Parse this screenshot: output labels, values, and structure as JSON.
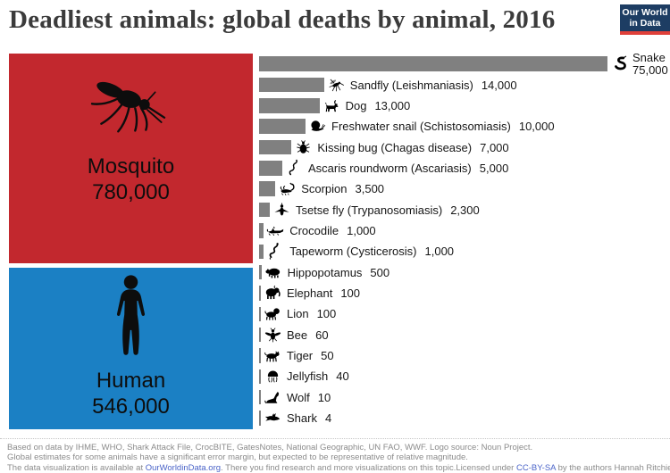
{
  "title": "Deadliest animals: global deaths by animal, 2016",
  "logo": {
    "line1": "Our World",
    "line2": "in Data"
  },
  "colors": {
    "bar": "#808080",
    "mosquito_box": "#c2282e",
    "human_box": "#1b80c4",
    "logo_bg": "#1d3d63",
    "logo_stripe": "#e0403a",
    "link": "#4a63c8",
    "title_text": "#3b3b3b",
    "footer_text": "#8b8b8b"
  },
  "chart_data": {
    "type": "bar",
    "title": "Deadliest animals: global deaths by animal, 2016",
    "unit": "global deaths",
    "orientation": "horizontal",
    "bar_scale_max": 75000,
    "legend_position": "none",
    "grid": false,
    "highlight_boxes": [
      {
        "label": "Mosquito",
        "value": 780000,
        "display": "780,000",
        "color": "#c2282e",
        "icon": "mosquito-icon"
      },
      {
        "label": "Human",
        "value": 546000,
        "display": "546,000",
        "color": "#1b80c4",
        "icon": "human-icon"
      }
    ],
    "rows": [
      {
        "label": "Snake",
        "value": 75000,
        "display": "75,000",
        "icon": "snake-icon",
        "label_layout": "stacked"
      },
      {
        "label": "Sandfly (Leishmaniasis)",
        "value": 14000,
        "display": "14,000",
        "icon": "sandfly-icon"
      },
      {
        "label": "Dog",
        "value": 13000,
        "display": "13,000",
        "icon": "dog-icon"
      },
      {
        "label": "Freshwater snail (Schistosomiasis)",
        "value": 10000,
        "display": "10,000",
        "icon": "freshwater-snail-icon"
      },
      {
        "label": "Kissing bug (Chagas disease)",
        "value": 7000,
        "display": "7,000",
        "icon": "kissing-bug-icon"
      },
      {
        "label": "Ascaris roundworm (Ascariasis)",
        "value": 5000,
        "display": "5,000",
        "icon": "roundworm-icon"
      },
      {
        "label": "Scorpion",
        "value": 3500,
        "display": "3,500",
        "icon": "scorpion-icon"
      },
      {
        "label": "Tsetse fly (Trypanosomiasis)",
        "value": 2300,
        "display": "2,300",
        "icon": "tsetse-fly-icon"
      },
      {
        "label": "Crocodile",
        "value": 1000,
        "display": "1,000",
        "icon": "crocodile-icon"
      },
      {
        "label": "Tapeworm (Cysticerosis)",
        "value": 1000,
        "display": "1,000",
        "icon": "tapeworm-icon"
      },
      {
        "label": "Hippopotamus",
        "value": 500,
        "display": "500",
        "icon": "hippopotamus-icon"
      },
      {
        "label": "Elephant",
        "value": 100,
        "display": "100",
        "icon": "elephant-icon"
      },
      {
        "label": "Lion",
        "value": 100,
        "display": "100",
        "icon": "lion-icon"
      },
      {
        "label": "Bee",
        "value": 60,
        "display": "60",
        "icon": "bee-icon"
      },
      {
        "label": "Tiger",
        "value": 50,
        "display": "50",
        "icon": "tiger-icon"
      },
      {
        "label": "Jellyfish",
        "value": 40,
        "display": "40",
        "icon": "jellyfish-icon"
      },
      {
        "label": "Wolf",
        "value": 10,
        "display": "10",
        "icon": "wolf-icon"
      },
      {
        "label": "Shark",
        "value": 4,
        "display": "4",
        "icon": "shark-icon"
      }
    ]
  },
  "footer": {
    "line1": "Based on data by IHME, WHO, Shark Attack File, CrocBITE, GatesNotes, National Geographic, UN FAO, WWF. Logo source: Noun Project.",
    "line2": "Global estimates for some animals have a significant error margin, but expected to be representative of relative magnitude.",
    "line3_prefix": "The data visualization is available at ",
    "line3_link": "OurWorldinData.org",
    "line3_suffix": ". There you find research and more visualizations on this topic.",
    "license_prefix": "Licensed under ",
    "license_link": "CC-BY-SA",
    "license_suffix": " by the authors Hannah Ritchie and Max Roser."
  }
}
